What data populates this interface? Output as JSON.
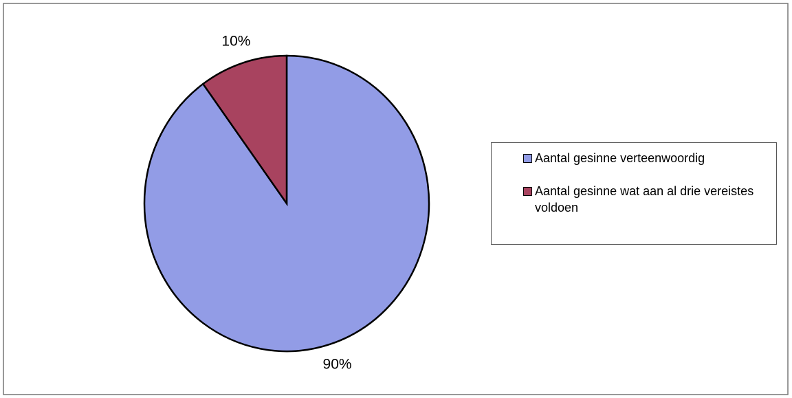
{
  "chart_data": {
    "type": "pie",
    "categories": [
      "Aantal gesinne verteenwoordig",
      "Aantal gesinne wat aan al drie vereistes voldoen"
    ],
    "values": [
      90,
      10
    ],
    "value_labels": [
      "90%",
      "10%"
    ],
    "colors": [
      "#929ce6",
      "#a8435f"
    ],
    "legend": "right"
  }
}
